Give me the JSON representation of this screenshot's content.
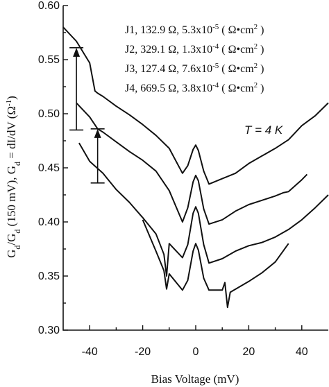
{
  "chart_data": {
    "type": "line",
    "xlabel": "Bias Voltage (mV)",
    "ylabel": "G_d/G_d (150 mV), G_d = dI/dV (Ω^-1)",
    "xlim": [
      -50,
      50
    ],
    "ylim": [
      0.3,
      0.6
    ],
    "x_ticks": [
      -40,
      -20,
      0,
      20,
      40
    ],
    "y_ticks": [
      "0.30",
      "0.35",
      "0.40",
      "0.45",
      "0.50",
      "0.55",
      "0.60"
    ],
    "temperature_label": "T = 4 K",
    "legend": [
      "J1, 132.9 Ω, 5.3x10^-5 ( Ω•cm^2 )",
      "J2, 329.1 Ω, 1.3x10^-4 ( Ω•cm^2 )",
      "J3, 127.4 Ω, 7.6x10^-5 ( Ω•cm^2 )",
      "J4, 669.5 Ω, 3.8x10^-4 ( Ω•cm^2 )"
    ],
    "series": [
      {
        "x": [
          -50,
          -45,
          -40,
          -38,
          -37,
          -35,
          -30,
          -25,
          -20,
          -15,
          -10,
          -5,
          -3,
          -1,
          0,
          1,
          3,
          5,
          10,
          15,
          20,
          25,
          30,
          35,
          40,
          45,
          50
        ],
        "y": [
          0.58,
          0.567,
          0.547,
          0.521,
          0.519,
          0.516,
          0.507,
          0.499,
          0.49,
          0.48,
          0.468,
          0.445,
          0.452,
          0.467,
          0.471,
          0.466,
          0.447,
          0.435,
          0.44,
          0.445,
          0.454,
          0.461,
          0.468,
          0.476,
          0.489,
          0.498,
          0.51
        ]
      },
      {
        "x": [
          -45,
          -40,
          -37,
          -35,
          -30,
          -25,
          -20,
          -15,
          -10,
          -5,
          -3,
          -1,
          0,
          1,
          3,
          5,
          10,
          15,
          20,
          25,
          30,
          33,
          35,
          40,
          42
        ],
        "y": [
          0.51,
          0.497,
          0.486,
          0.483,
          0.474,
          0.465,
          0.457,
          0.447,
          0.429,
          0.4,
          0.413,
          0.437,
          0.443,
          0.438,
          0.412,
          0.398,
          0.402,
          0.41,
          0.416,
          0.42,
          0.424,
          0.427,
          0.428,
          0.439,
          0.444
        ]
      },
      {
        "x": [
          -44,
          -40,
          -35,
          -30,
          -25,
          -20,
          -15,
          -12,
          -11,
          -10,
          -5,
          -3,
          -1,
          0,
          1,
          3,
          5,
          10,
          15,
          20,
          25,
          30,
          35,
          40,
          45,
          50
        ],
        "y": [
          0.473,
          0.456,
          0.445,
          0.43,
          0.418,
          0.404,
          0.389,
          0.37,
          0.35,
          0.38,
          0.367,
          0.379,
          0.408,
          0.414,
          0.408,
          0.379,
          0.362,
          0.366,
          0.373,
          0.378,
          0.381,
          0.386,
          0.393,
          0.402,
          0.413,
          0.425
        ]
      },
      {
        "x": [
          -20,
          -15,
          -12,
          -11,
          -10,
          -5,
          -3,
          -1,
          0,
          1,
          3,
          5,
          10,
          11,
          12,
          13,
          20,
          25,
          30,
          35
        ],
        "y": [
          0.402,
          0.373,
          0.355,
          0.338,
          0.352,
          0.337,
          0.346,
          0.373,
          0.38,
          0.374,
          0.348,
          0.337,
          0.337,
          0.344,
          0.321,
          0.335,
          0.345,
          0.353,
          0.363,
          0.38
        ]
      }
    ],
    "arrows": [
      {
        "x": -45,
        "from": 0.485,
        "to": 0.561
      },
      {
        "x": -37,
        "from": 0.436,
        "to": 0.486
      }
    ]
  }
}
